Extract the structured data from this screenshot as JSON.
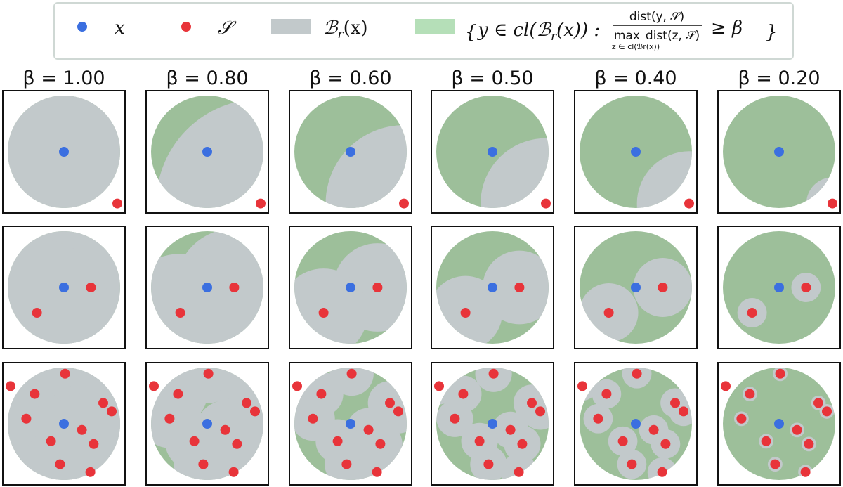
{
  "colors": {
    "x_point": "#3b6fe0",
    "s_point": "#e8343a",
    "ball": "#c2c9cb",
    "region": "#9dbf9a",
    "legend_region": "#b5dfb8",
    "frame": "#111111"
  },
  "legend": {
    "x_label": "x",
    "s_label": "𝒮",
    "ball_label": "ℬ",
    "ball_sub": "r",
    "ball_arg": "(x)",
    "set_open": "{",
    "set_lhs": "y ∈ cl(ℬ",
    "set_lhs_sub": "r",
    "set_lhs_end": "(x)) :",
    "frac_num": "dist(y, 𝒮)",
    "frac_den_max": "max",
    "frac_den_rest": "dist(z, 𝒮)",
    "frac_den_under": "z ∈ cl(ℬr(x))",
    "set_rhs": "≥ β",
    "set_close": "}"
  },
  "columns": [
    {
      "title": "β = 1.00",
      "beta": 1.0
    },
    {
      "title": "β = 0.80",
      "beta": 0.8
    },
    {
      "title": "β = 0.60",
      "beta": 0.6
    },
    {
      "title": "β = 0.50",
      "beta": 0.5
    },
    {
      "title": "β = 0.40",
      "beta": 0.4
    },
    {
      "title": "β = 0.20",
      "beta": 0.2
    }
  ],
  "rows": [
    {
      "x": [
        0.0,
        0.0
      ],
      "S": [
        [
          0.95,
          -0.92
        ]
      ]
    },
    {
      "x": [
        0.0,
        0.0
      ],
      "S": [
        [
          0.48,
          0.0
        ],
        [
          -0.48,
          -0.45
        ]
      ]
    },
    {
      "x": [
        0.0,
        0.0
      ],
      "S": [
        [
          0.02,
          0.89
        ],
        [
          -0.95,
          0.67
        ],
        [
          -0.52,
          0.53
        ],
        [
          0.7,
          0.37
        ],
        [
          0.85,
          0.22
        ],
        [
          -0.67,
          0.09
        ],
        [
          0.32,
          -0.11
        ],
        [
          -0.23,
          -0.31
        ],
        [
          0.53,
          -0.36
        ],
        [
          -0.07,
          -0.72
        ],
        [
          0.47,
          -0.86
        ]
      ]
    }
  ]
}
